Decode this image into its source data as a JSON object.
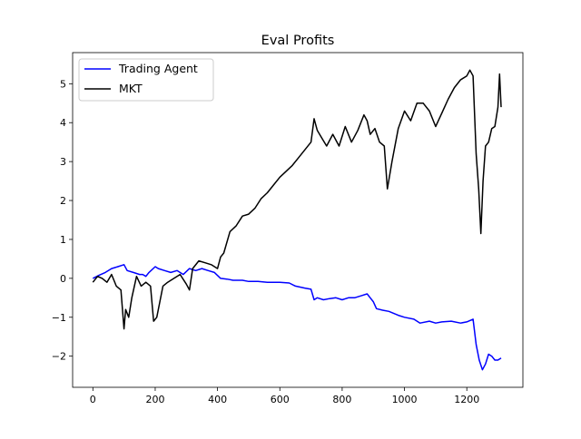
{
  "chart_data": {
    "type": "line",
    "title": "Eval Profits",
    "xlabel": "",
    "ylabel": "",
    "xlim": [
      -65,
      1380
    ],
    "ylim": [
      -2.8,
      5.8
    ],
    "xticks": [
      0,
      200,
      400,
      600,
      800,
      1000,
      1200
    ],
    "yticks": [
      -2,
      -1,
      0,
      1,
      2,
      3,
      4,
      5
    ],
    "grid": false,
    "legend": "top-left",
    "series": [
      {
        "name": "Trading Agent",
        "color": "#0000ff",
        "x": [
          0,
          20,
          40,
          60,
          80,
          100,
          110,
          130,
          150,
          160,
          170,
          180,
          200,
          210,
          230,
          250,
          270,
          290,
          310,
          330,
          350,
          370,
          390,
          410,
          430,
          450,
          480,
          500,
          530,
          560,
          580,
          600,
          630,
          650,
          680,
          700,
          710,
          720,
          740,
          760,
          780,
          800,
          820,
          840,
          860,
          880,
          890,
          900,
          910,
          930,
          950,
          980,
          1000,
          1030,
          1050,
          1080,
          1100,
          1120,
          1150,
          1180,
          1200,
          1220,
          1230,
          1240,
          1250,
          1260,
          1270,
          1280,
          1290,
          1300,
          1310
        ],
        "y": [
          0.0,
          0.08,
          0.15,
          0.25,
          0.3,
          0.35,
          0.2,
          0.15,
          0.1,
          0.1,
          0.05,
          0.15,
          0.3,
          0.25,
          0.2,
          0.15,
          0.2,
          0.1,
          0.25,
          0.2,
          0.25,
          0.2,
          0.15,
          0.0,
          -0.02,
          -0.05,
          -0.05,
          -0.08,
          -0.08,
          -0.1,
          -0.1,
          -0.1,
          -0.12,
          -0.2,
          -0.25,
          -0.28,
          -0.55,
          -0.5,
          -0.55,
          -0.52,
          -0.5,
          -0.55,
          -0.5,
          -0.5,
          -0.45,
          -0.4,
          -0.5,
          -0.6,
          -0.78,
          -0.82,
          -0.85,
          -0.95,
          -1.0,
          -1.05,
          -1.15,
          -1.1,
          -1.15,
          -1.12,
          -1.1,
          -1.15,
          -1.12,
          -1.05,
          -1.7,
          -2.1,
          -2.35,
          -2.2,
          -1.95,
          -2.0,
          -2.1,
          -2.1,
          -2.05
        ]
      },
      {
        "name": "MKT",
        "color": "#000000",
        "x": [
          0,
          15,
          30,
          45,
          60,
          75,
          90,
          100,
          105,
          115,
          125,
          140,
          155,
          170,
          185,
          195,
          205,
          215,
          225,
          240,
          260,
          280,
          300,
          310,
          320,
          340,
          360,
          380,
          400,
          410,
          420,
          440,
          460,
          480,
          500,
          520,
          540,
          560,
          580,
          600,
          620,
          640,
          660,
          680,
          700,
          710,
          720,
          735,
          750,
          770,
          790,
          810,
          830,
          850,
          870,
          880,
          890,
          905,
          920,
          935,
          945,
          960,
          980,
          1000,
          1020,
          1040,
          1060,
          1080,
          1100,
          1120,
          1140,
          1160,
          1180,
          1200,
          1210,
          1220,
          1230,
          1238,
          1245,
          1252,
          1260,
          1270,
          1280,
          1290,
          1300,
          1305,
          1310
        ],
        "y": [
          -0.1,
          0.05,
          0.0,
          -0.1,
          0.1,
          -0.2,
          -0.3,
          -1.3,
          -0.8,
          -1.0,
          -0.5,
          0.05,
          -0.2,
          -0.1,
          -0.2,
          -1.1,
          -1.0,
          -0.6,
          -0.2,
          -0.1,
          0.0,
          0.1,
          -0.15,
          -0.3,
          0.25,
          0.45,
          0.4,
          0.35,
          0.25,
          0.55,
          0.65,
          1.2,
          1.35,
          1.6,
          1.65,
          1.8,
          2.05,
          2.2,
          2.4,
          2.6,
          2.75,
          2.9,
          3.1,
          3.3,
          3.5,
          4.1,
          3.8,
          3.6,
          3.4,
          3.7,
          3.4,
          3.9,
          3.5,
          3.8,
          4.2,
          4.05,
          3.7,
          3.85,
          3.5,
          3.4,
          2.3,
          3.0,
          3.85,
          4.3,
          4.05,
          4.5,
          4.5,
          4.3,
          3.9,
          4.25,
          4.6,
          4.9,
          5.1,
          5.2,
          5.35,
          5.2,
          3.2,
          2.3,
          1.15,
          2.5,
          3.4,
          3.5,
          3.85,
          3.9,
          4.4,
          5.25,
          4.4
        ]
      }
    ]
  }
}
